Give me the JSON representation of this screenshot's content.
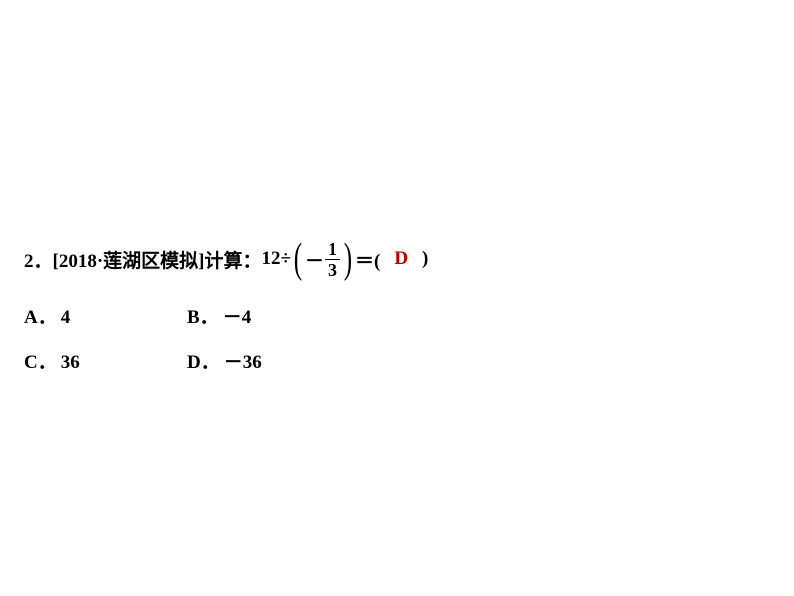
{
  "question": {
    "number": "2．",
    "source": "[2018·莲湖区模拟]",
    "calc_label": "计算：",
    "twelve": "12",
    "divide": "÷",
    "paren_left": "(",
    "minus": "－",
    "frac_num": "1",
    "frac_den": "3",
    "paren_right": ")",
    "equals": "＝(",
    "answer": "D",
    "close": ")"
  },
  "options": {
    "a": {
      "label": "A．",
      "value": "4"
    },
    "b": {
      "label": "B．",
      "value": "－4"
    },
    "c": {
      "label": "C．",
      "value": "36"
    },
    "d": {
      "label": "D．",
      "value": "－36"
    }
  },
  "colors": {
    "text": "#000000",
    "answer": "#c00000",
    "background": "#ffffff"
  },
  "fonts": {
    "body_size": 19,
    "paren_size": 42,
    "frac_size": 18
  }
}
